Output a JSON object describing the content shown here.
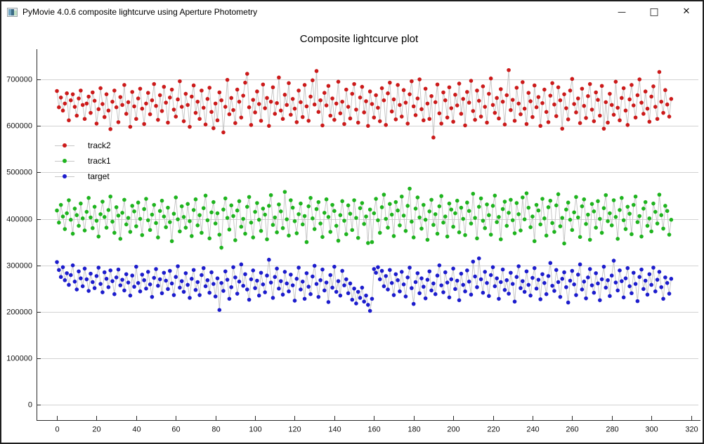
{
  "window": {
    "title": "PyMovie 4.0.6 composite lightcurve using Aperture Photometry",
    "controls": {
      "minimize": "—",
      "maximize": "□",
      "close": "✕"
    }
  },
  "chart_data": {
    "type": "scatter",
    "title": "Composite lightcurve plot",
    "xlabel": "",
    "ylabel": "",
    "grid": "horizontal",
    "legend_position": "upper-left",
    "legend": [
      "track2",
      "track1",
      "target"
    ],
    "xlim": [
      -10.3,
      323
    ],
    "ylim": [
      -33000,
      765000
    ],
    "xticks": [
      0,
      20,
      40,
      60,
      80,
      100,
      120,
      140,
      160,
      180,
      200,
      220,
      240,
      260,
      280,
      300,
      320
    ],
    "yticks": [
      0,
      100000,
      200000,
      300000,
      400000,
      500000,
      600000,
      700000
    ],
    "n_points": 311,
    "x_start": 0,
    "x_step": 1,
    "values_scale": 1000,
    "line_color": "#c6c6c6",
    "grid_color": "#d2d2d2",
    "axis_color": "#2b2b2b",
    "tick_label_color": "#111111",
    "series": [
      {
        "name": "track2",
        "color": "#cc1a1a",
        "values_k": [
          675,
          640,
          661,
          633,
          648,
          670,
          612,
          655,
          668,
          641,
          622,
          659,
          676,
          645,
          615,
          648,
          663,
          628,
          672,
          654,
          605,
          636,
          681,
          647,
          619,
          668,
          633,
          593,
          652,
          676,
          640,
          608,
          662,
          645,
          688,
          626,
          651,
          598,
          673,
          642,
          615,
          659,
          680,
          637,
          604,
          648,
          671,
          625,
          655,
          690,
          643,
          613,
          666,
          632,
          684,
          650,
          607,
          661,
          678,
          635,
          620,
          657,
          696,
          641,
          610,
          669,
          645,
          598,
          663,
          687,
          628,
          652,
          615,
          676,
          639,
          603,
          658,
          682,
          630,
          595,
          648,
          612,
          672,
          655,
          586,
          641,
          699,
          625,
          660,
          634,
          606,
          678,
          652,
          618,
          665,
          693,
          712,
          640,
          602,
          656,
          629,
          674,
          647,
          611,
          689,
          638,
          660,
          600,
          652,
          683,
          626,
          649,
          704,
          633,
          615,
          667,
          645,
          692,
          624,
          658,
          637,
          608,
          676,
          651,
          619,
          688,
          642,
          611,
          663,
          698,
          646,
          718,
          630,
          655,
          601,
          671,
          644,
          686,
          622,
          659,
          613,
          648,
          695,
          627,
          652,
          604,
          678,
          641,
          616,
          669,
          690,
          635,
          607,
          661,
          684,
          629,
          653,
          600,
          674,
          647,
          618,
          666,
          639,
          610,
          681,
          655,
          602,
          670,
          693,
          631,
          657,
          614,
          688,
          645,
          620,
          677,
          650,
          605,
          668,
          696,
          642,
          623,
          659,
          700,
          636,
          612,
          680,
          648,
          615,
          664,
          575,
          651,
          689,
          627,
          605,
          672,
          655,
          618,
          683,
          638,
          609,
          667,
          644,
          691,
          626,
          658,
          601,
          673,
          650,
          697,
          632,
          613,
          676,
          654,
          620,
          685,
          641,
          607,
          669,
          702,
          645,
          628,
          660,
          616,
          679,
          652,
          603,
          666,
          720,
          634,
          656,
          611,
          682,
          648,
          625,
          694,
          637,
          604,
          671,
          653,
          619,
          687,
          640,
          662,
          600,
          649,
          678,
          630,
          608,
          665,
          692,
          646,
          621,
          683,
          655,
          594,
          668,
          638,
          614,
          676,
          701,
          647,
          629,
          659,
          606,
          680,
          643,
          617,
          664,
          690,
          635,
          610,
          672,
          656,
          622,
          686,
          594,
          651,
          607,
          669,
          645,
          624,
          695,
          639,
          612,
          660,
          681,
          633,
          602,
          657,
          688,
          644,
          618,
          666,
          700,
          650,
          626,
          674,
          637,
          609,
          663,
          685,
          641,
          615,
          716,
          652,
          628,
          677,
          646,
          620,
          658
        ]
      },
      {
        "name": "track1",
        "color": "#1eb41e",
        "values_k": [
          418,
          392,
          430,
          405,
          378,
          412,
          440,
          398,
          368,
          422,
          408,
          385,
          433,
          401,
          375,
          415,
          445,
          403,
          380,
          426,
          396,
          362,
          410,
          437,
          404,
          381,
          419,
          448,
          394,
          370,
          425,
          407,
          357,
          413,
          441,
          388,
          402,
          372,
          428,
          416,
          384,
          435,
          400,
          365,
          421,
          443,
          397,
          376,
          409,
          430,
          391,
          360,
          417,
          439,
          405,
          382,
          424,
          393,
          352,
          411,
          446,
          399,
          373,
          427,
          404,
          381,
          432,
          395,
          363,
          419,
          442,
          386,
          408,
          370,
          423,
          450,
          397,
          358,
          414,
          436,
          390,
          412,
          366,
          338,
          420,
          444,
          402,
          377,
          429,
          406,
          354,
          418,
          438,
          383,
          400,
          368,
          426,
          447,
          392,
          360,
          415,
          434,
          398,
          374,
          422,
          409,
          356,
          428,
          451,
          387,
          403,
          371,
          431,
          416,
          380,
          458,
          399,
          364,
          440,
          424,
          395,
          369,
          410,
          433,
          388,
          406,
          350,
          427,
          445,
          401,
          378,
          421,
          436,
          390,
          361,
          413,
          442,
          404,
          372,
          430,
          417,
          385,
          353,
          408,
          438,
          396,
          367,
          429,
          411,
          376,
          440,
          402,
          359,
          423,
          434,
          389,
          405,
          348,
          420,
          350,
          412,
          443,
          397,
          370,
          425,
          452,
          400,
          381,
          432,
          409,
          363,
          436,
          418,
          386,
          448,
          407,
          374,
          428,
          465,
          394,
          360,
          422,
          446,
          403,
          379,
          430,
          398,
          355,
          416,
          441,
          387,
          410,
          368,
          427,
          449,
          392,
          405,
          362,
          433,
          420,
          383,
          412,
          439,
          371,
          424,
          400,
          365,
          435,
          417,
          390,
          454,
          402,
          358,
          426,
          444,
          396,
          380,
          431,
          408,
          366,
          428,
          450,
          393,
          404,
          356,
          421,
          437,
          385,
          413,
          441,
          397,
          369,
          434,
          410,
          375,
          446,
          399,
          455,
          424,
          382,
          405,
          352,
          430,
          418,
          388,
          443,
          401,
          364,
          425,
          439,
          391,
          372,
          429,
          453,
          384,
          402,
          347,
          420,
          435,
          398,
          376,
          414,
          447,
          403,
          361,
          427,
          442,
          389,
          409,
          355,
          432,
          416,
          381,
          438,
          400,
          370,
          423,
          451,
          395,
          412,
          386,
          440,
          404,
          357,
          419,
          445,
          397,
          378,
          426,
          411,
          367,
          430,
          448,
          393,
          406,
          362,
          422,
          436,
          385,
          401,
          373,
          433,
          415,
          390,
          452,
          408,
          379,
          428,
          417,
          366,
          398
        ]
      },
      {
        "name": "target",
        "color": "#1c1ccd",
        "values_k": [
          307,
          290,
          275,
          296,
          268,
          283,
          258,
          279,
          300,
          265,
          248,
          287,
          272,
          255,
          293,
          270,
          245,
          282,
          264,
          251,
          277,
          295,
          260,
          242,
          285,
          271,
          253,
          289,
          266,
          238,
          274,
          291,
          257,
          269,
          246,
          281,
          263,
          235,
          278,
          254,
          297,
          262,
          244,
          280,
          268,
          250,
          286,
          259,
          232,
          273,
          292,
          256,
          270,
          240,
          284,
          267,
          249,
          288,
          261,
          236,
          275,
          298,
          252,
          266,
          243,
          283,
          258,
          230,
          271,
          290,
          247,
          264,
          236,
          279,
          294,
          255,
          268,
          241,
          285,
          260,
          233,
          272,
          204,
          262,
          245,
          287,
          269,
          228,
          253,
          296,
          274,
          239,
          265,
          302,
          256,
          281,
          248,
          226,
          270,
          289,
          251,
          267,
          235,
          284,
          259,
          242,
          278,
          312,
          263,
          230,
          275,
          293,
          250,
          266,
          237,
          286,
          261,
          244,
          280,
          257,
          224,
          271,
          295,
          248,
          265,
          228,
          283,
          254,
          238,
          276,
          299,
          260,
          232,
          268,
          291,
          246,
          263,
          221,
          279,
          252,
          297,
          243,
          266,
          235,
          288,
          257,
          270,
          240,
          261,
          226,
          250,
          218,
          243,
          230,
          252,
          222,
          235,
          215,
          202,
          228,
          292,
          284,
          296,
          270,
          288,
          255,
          277,
          248,
          290,
          262,
          236,
          281,
          268,
          244,
          286,
          259,
          233,
          274,
          295,
          251,
          217,
          264,
          283,
          240,
          272,
          254,
          229,
          269,
          287,
          246,
          261,
          238,
          278,
          300,
          257,
          242,
          285,
          263,
          231,
          270,
          293,
          249,
          267,
          225,
          282,
          258,
          244,
          289,
          265,
          237,
          308,
          276,
          253,
          315,
          270,
          241,
          286,
          262,
          234,
          279,
          296,
          255,
          272,
          228,
          264,
          291,
          247,
          268,
          239,
          284,
          260,
          222,
          275,
          298,
          251,
          266,
          243,
          287,
          258,
          235,
          273,
          294,
          250,
          269,
          227,
          281,
          262,
          238,
          277,
          305,
          256,
          245,
          290,
          264,
          232,
          271,
          285,
          253,
          220,
          267,
          288,
          259,
          236,
          280,
          302,
          248,
          265,
          229,
          274,
          292,
          257,
          241,
          283,
          261,
          225,
          270,
          297,
          252,
          268,
          234,
          278,
          310,
          263,
          246,
          289,
          266,
          231,
          272,
          294,
          255,
          240,
          284,
          260,
          223,
          275,
          291,
          249,
          267,
          237,
          281,
          258,
          295,
          244,
          269,
          286,
          253,
          228,
          274,
          262,
          239,
          271
        ]
      }
    ]
  }
}
